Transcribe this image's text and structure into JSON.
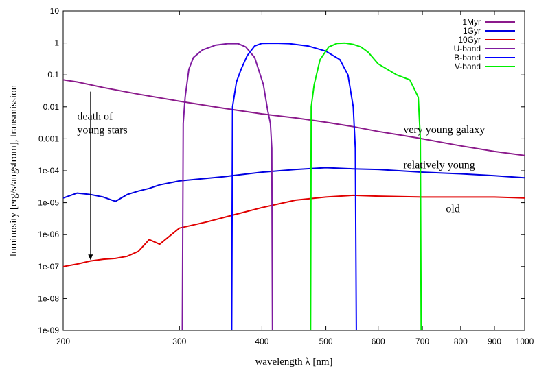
{
  "chart_data": {
    "type": "line",
    "xlabel": "wavelength λ [nm]",
    "ylabel": "luminosity [erg/s/angstrom], transmission",
    "xscale": "log",
    "yscale": "log",
    "xlim": [
      200,
      1000
    ],
    "ylim": [
      1e-09,
      10
    ],
    "grid": false,
    "legend_position": "top-right",
    "x_ticks": [
      200,
      300,
      400,
      500,
      600,
      700,
      800,
      900,
      1000
    ],
    "x_tick_labels": [
      "200",
      "300",
      "400",
      "500",
      "600",
      "700",
      "800",
      "900",
      "1000"
    ],
    "y_ticks": [
      1e-09,
      1e-08,
      1e-07,
      1e-06,
      1e-05,
      0.0001,
      0.001,
      0.01,
      0.1,
      1,
      10
    ],
    "y_tick_labels": [
      "1e-09",
      "1e-08",
      "1e-07",
      "1e-06",
      "1e-05",
      "1e-04",
      "0.001",
      "0.01",
      "0.1",
      "1",
      "10"
    ],
    "series": [
      {
        "name": "1Myr",
        "color": "#8b1a8b",
        "x": [
          200,
          210,
          230,
          260,
          300,
          350,
          400,
          450,
          500,
          550,
          600,
          650,
          700,
          800,
          900,
          1000
        ],
        "y": [
          0.07,
          0.06,
          0.04,
          0.025,
          0.015,
          0.009,
          0.006,
          0.0045,
          0.0033,
          0.0024,
          0.0017,
          0.0013,
          0.001,
          0.0006,
          0.0004,
          0.0003
        ]
      },
      {
        "name": "1Gyr",
        "color": "#0000e0",
        "x": [
          200,
          210,
          220,
          230,
          240,
          250,
          260,
          270,
          280,
          300,
          350,
          400,
          450,
          500,
          550,
          600,
          700,
          800,
          900,
          1000
        ],
        "y": [
          1.4e-05,
          2e-05,
          1.8e-05,
          1.5e-05,
          1.1e-05,
          1.8e-05,
          2.3e-05,
          2.8e-05,
          3.6e-05,
          4.8e-05,
          6.5e-05,
          9e-05,
          0.00011,
          0.000125,
          0.000115,
          0.00011,
          9e-05,
          8e-05,
          7e-05,
          6e-05
        ]
      },
      {
        "name": "10Gyr",
        "color": "#e00000",
        "x": [
          200,
          210,
          220,
          230,
          240,
          250,
          260,
          270,
          280,
          300,
          330,
          360,
          400,
          450,
          500,
          550,
          600,
          700,
          800,
          900,
          1000
        ],
        "y": [
          1e-07,
          1.2e-07,
          1.5e-07,
          1.7e-07,
          1.8e-07,
          2.1e-07,
          3e-07,
          7e-07,
          5e-07,
          1.6e-06,
          2.5e-06,
          4e-06,
          7e-06,
          1.2e-05,
          1.5e-05,
          1.7e-05,
          1.6e-05,
          1.5e-05,
          1.5e-05,
          1.5e-05,
          1.4e-05
        ]
      },
      {
        "name": "U-band",
        "color": "#7f1a9f",
        "x": [
          303,
          304,
          306,
          310,
          315,
          325,
          340,
          355,
          368,
          378,
          390,
          402,
          408,
          412,
          414,
          415
        ],
        "y": [
          1e-09,
          0.003,
          0.02,
          0.15,
          0.35,
          0.6,
          0.85,
          0.95,
          0.95,
          0.75,
          0.35,
          0.05,
          0.008,
          0.003,
          0.0005,
          1e-09
        ]
      },
      {
        "name": "B-band",
        "color": "#0000ff",
        "x": [
          360,
          361,
          366,
          372,
          380,
          390,
          400,
          420,
          440,
          470,
          500,
          525,
          540,
          550,
          554,
          556
        ],
        "y": [
          1e-09,
          0.01,
          0.06,
          0.15,
          0.4,
          0.8,
          0.97,
          0.98,
          0.95,
          0.8,
          0.55,
          0.3,
          0.1,
          0.01,
          0.0005,
          1e-09
        ]
      },
      {
        "name": "V-band",
        "color": "#00ee00",
        "x": [
          474,
          475,
          480,
          490,
          505,
          520,
          535,
          550,
          565,
          580,
          600,
          640,
          670,
          690,
          695,
          697
        ],
        "y": [
          1e-09,
          0.01,
          0.05,
          0.3,
          0.75,
          0.97,
          0.99,
          0.9,
          0.75,
          0.5,
          0.22,
          0.1,
          0.07,
          0.02,
          0.001,
          1e-09
        ]
      }
    ],
    "annotations": [
      {
        "text_lines": [
          "death of",
          "young stars"
        ],
        "x": 210,
        "y": 0.004
      },
      {
        "text_lines": [
          "very young galaxy"
        ],
        "x": 655,
        "y": 0.0015
      },
      {
        "text_lines": [
          "relatively young"
        ],
        "x": 655,
        "y": 0.00012
      },
      {
        "text_lines": [
          "old"
        ],
        "x": 760,
        "y": 5e-06
      }
    ],
    "arrow": {
      "from": [
        220,
        0.03
      ],
      "to": [
        220,
        1.6e-07
      ]
    }
  }
}
